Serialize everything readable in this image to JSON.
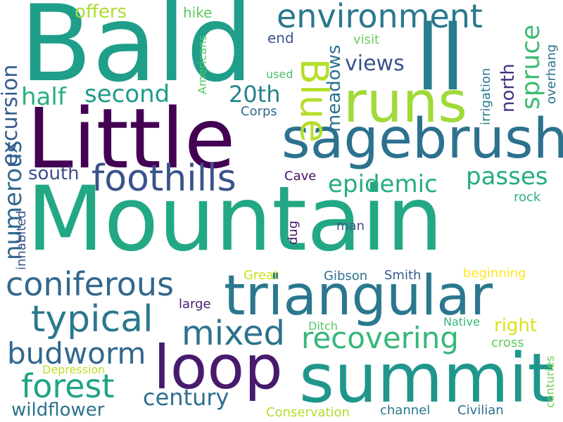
{
  "words": [
    {
      "text": "Mountain",
      "color": "#22a884"
    },
    {
      "text": "Bald",
      "color": "#1f9e89"
    },
    {
      "text": "Little",
      "color": "#440154"
    },
    {
      "text": "summit",
      "color": "#1f968b"
    },
    {
      "text": "triangular",
      "color": "#2a788e"
    },
    {
      "text": "sagebrush",
      "color": "#2c728e"
    },
    {
      "text": "ll",
      "color": "#287d8e"
    },
    {
      "text": "runs",
      "color": "#a0da39"
    },
    {
      "text": "loop",
      "color": "#481a6c"
    },
    {
      "text": "foothills",
      "color": "#3b528b"
    },
    {
      "text": "Blue",
      "color": "#b5de2b"
    },
    {
      "text": "environment",
      "color": "#2a788e"
    },
    {
      "text": "coniferous",
      "color": "#31688e"
    },
    {
      "text": "typical",
      "color": "#2a788e"
    },
    {
      "text": "mixed",
      "color": "#2c728e"
    },
    {
      "text": "recovering",
      "color": "#35b779"
    },
    {
      "text": "forest",
      "color": "#20a386"
    },
    {
      "text": "budworm",
      "color": "#31688e"
    },
    {
      "text": "epidemic",
      "color": "#26ad81"
    },
    {
      "text": "passes",
      "color": "#25ac82"
    },
    {
      "text": "second",
      "color": "#1e9c89"
    },
    {
      "text": "20th",
      "color": "#26828e"
    },
    {
      "text": "half",
      "color": "#29af7f"
    },
    {
      "text": "century",
      "color": "#2e6e8e"
    },
    {
      "text": "numerous",
      "color": "#30688e"
    },
    {
      "text": "excursion",
      "color": "#365c8d"
    },
    {
      "text": "spruce",
      "color": "#3fbc73"
    },
    {
      "text": "views",
      "color": "#3b528b"
    },
    {
      "text": "meadows",
      "color": "#2d718e"
    },
    {
      "text": "north",
      "color": "#46327e"
    },
    {
      "text": "south",
      "color": "#3e4c8a"
    },
    {
      "text": "offers",
      "color": "#addc30"
    },
    {
      "text": "wildflower",
      "color": "#2c728e"
    },
    {
      "text": "right",
      "color": "#d8e219"
    },
    {
      "text": "hike",
      "color": "#5ec962"
    },
    {
      "text": "end",
      "color": "#3b528b"
    },
    {
      "text": "visit",
      "color": "#6ccd5a"
    },
    {
      "text": "used",
      "color": "#4ac16d"
    },
    {
      "text": "Americans",
      "color": "#54c568"
    },
    {
      "text": "irrigation",
      "color": "#287c8e"
    },
    {
      "text": "overhang",
      "color": "#2c728e"
    },
    {
      "text": "Corps",
      "color": "#2f6c8e"
    },
    {
      "text": "Cave",
      "color": "#471164"
    },
    {
      "text": "rock",
      "color": "#2db27d"
    },
    {
      "text": "inhabited",
      "color": "#3b528b"
    },
    {
      "text": "dug",
      "color": "#481668"
    },
    {
      "text": "man",
      "color": "#3b528b"
    },
    {
      "text": "Great",
      "color": "#cae11f"
    },
    {
      "text": "Gibson",
      "color": "#2c728e"
    },
    {
      "text": "Smith",
      "color": "#375a8c"
    },
    {
      "text": "beginning",
      "color": "#fde725"
    },
    {
      "text": "large",
      "color": "#482173"
    },
    {
      "text": "Ditch",
      "color": "#58c765"
    },
    {
      "text": "Native",
      "color": "#35b779"
    },
    {
      "text": "cross",
      "color": "#5ec962"
    },
    {
      "text": "centuries",
      "color": "#6ece58"
    },
    {
      "text": "Depression",
      "color": "#bddf26"
    },
    {
      "text": "Conservation",
      "color": "#b2dd2d"
    },
    {
      "text": "channel",
      "color": "#2a788e"
    },
    {
      "text": "Civilian",
      "color": "#2e6e8e"
    }
  ]
}
